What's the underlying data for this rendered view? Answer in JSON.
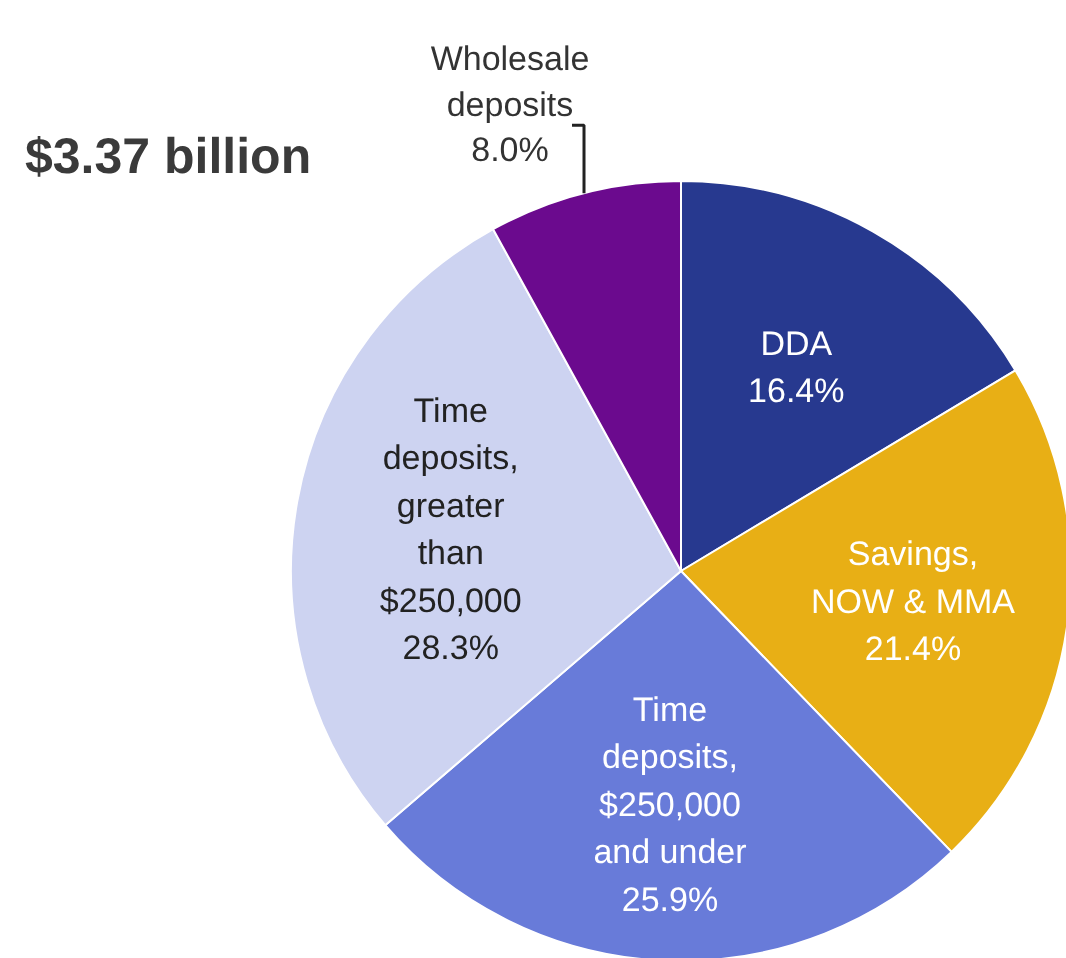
{
  "chart_data": {
    "type": "pie",
    "title": "$3.37 billion",
    "categories": [
      "DDA",
      "Savings, NOW & MMA",
      "Time deposits, $250,000 and under",
      "Time deposits, greater than $250,000",
      "Wholesale deposits"
    ],
    "values": [
      16.4,
      21.4,
      25.9,
      28.3,
      8.0
    ],
    "colors": [
      "#27398f",
      "#e8af15",
      "#687bd9",
      "#cdd3f1",
      "#6b0a8e"
    ],
    "value_labels": [
      "16.4%",
      "21.4%",
      "25.9%",
      "28.3%",
      "8.0%"
    ]
  }
}
